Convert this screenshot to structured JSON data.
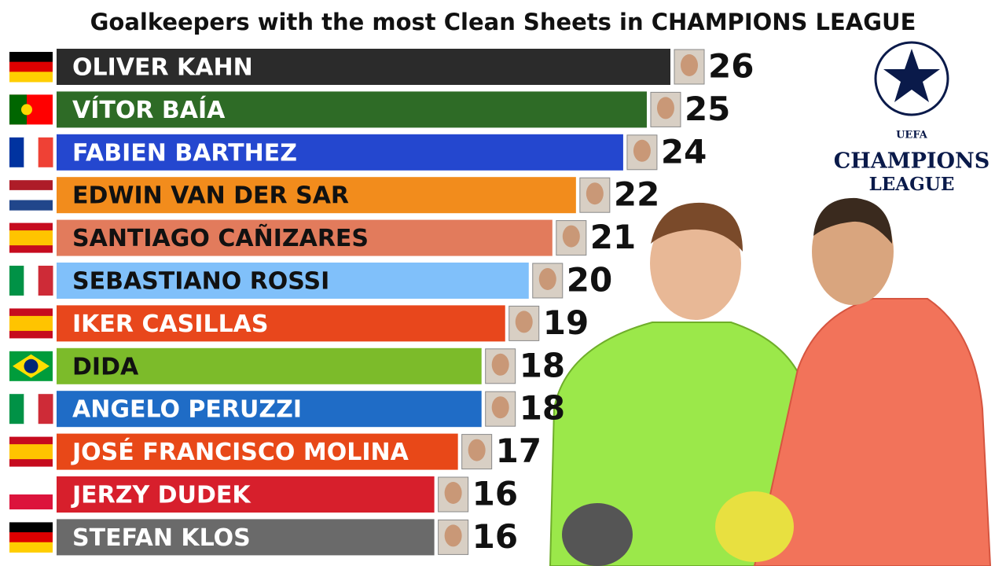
{
  "chart_data": {
    "type": "bar",
    "orientation": "horizontal",
    "title": "Goalkeepers with the most Clean Sheets in CHAMPIONS LEAGUE",
    "categories": [
      "OLIVER KAHN",
      "VÍTOR BAÍA",
      "FABIEN BARTHEZ",
      "EDWIN VAN DER SAR",
      "SANTIAGO CAÑIZARES",
      "SEBASTIANO ROSSI",
      "IKER CASILLAS",
      "DIDA",
      "ANGELO PERUZZI",
      "JOSÉ FRANCISCO MOLINA",
      "JERZY DUDEK",
      "STEFAN KLOS"
    ],
    "values": [
      26,
      25,
      24,
      22,
      21,
      20,
      19,
      18,
      18,
      17,
      16,
      16
    ],
    "colors": [
      "#2b2b2b",
      "#2e6b26",
      "#2447cf",
      "#f28c1c",
      "#e27b5c",
      "#80c0fa",
      "#e8471c",
      "#7cbb2a",
      "#1f6cc6",
      "#e84818",
      "#d71f2c",
      "#6a6a6a"
    ],
    "label_colors": [
      "#ffffff",
      "#ffffff",
      "#ffffff",
      "#111111",
      "#111111",
      "#111111",
      "#ffffff",
      "#111111",
      "#ffffff",
      "#ffffff",
      "#ffffff",
      "#ffffff"
    ],
    "logo_text": [
      "UEFA",
      "CHAMPIONS",
      "LEAGUE"
    ]
  }
}
